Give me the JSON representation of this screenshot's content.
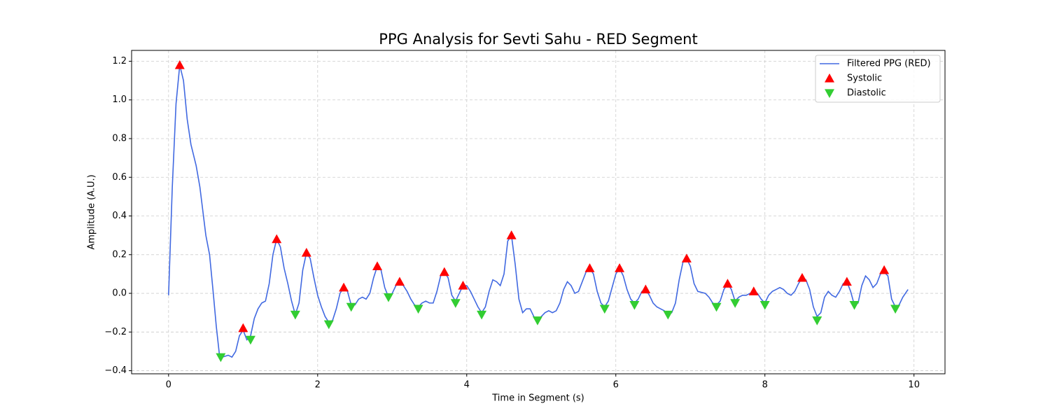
{
  "chart_data": {
    "type": "line",
    "title": "PPG Analysis for Sevti Sahu - RED Segment",
    "xlabel": "Time in Segment (s)",
    "ylabel": "Amplitude (A.U.)",
    "xlim": [
      -0.496,
      10.416
    ],
    "ylim": [
      -0.416,
      1.256
    ],
    "xticks": [
      0,
      2,
      4,
      6,
      8,
      10
    ],
    "yticks": [
      {
        "value": -0.4,
        "label": "−0.4"
      },
      {
        "value": -0.2,
        "label": "−0.2"
      },
      {
        "value": 0,
        "label": "0.0"
      },
      {
        "value": 0.2,
        "label": "0.2"
      },
      {
        "value": 0.4,
        "label": "0.4"
      },
      {
        "value": 0.6,
        "label": "0.6"
      },
      {
        "value": 0.8,
        "label": "0.8"
      },
      {
        "value": 1,
        "label": "1.0"
      },
      {
        "value": 1.2,
        "label": "1.2"
      }
    ],
    "grid": true,
    "legend": "upper right",
    "series": [
      {
        "name": "Filtered PPG (RED)",
        "color": "#4169e1",
        "marker": "line",
        "x": [
          0,
          0.05,
          0.1,
          0.15,
          0.2,
          0.25,
          0.3,
          0.37,
          0.42,
          0.5,
          0.55,
          0.6,
          0.64,
          0.68,
          0.72,
          0.8,
          0.85,
          0.9,
          0.95,
          1.0,
          1.05,
          1.1,
          1.15,
          1.2,
          1.25,
          1.3,
          1.35,
          1.4,
          1.45,
          1.5,
          1.55,
          1.6,
          1.65,
          1.7,
          1.75,
          1.8,
          1.85,
          1.9,
          1.95,
          2.0,
          2.05,
          2.1,
          2.15,
          2.2,
          2.25,
          2.3,
          2.35,
          2.4,
          2.45,
          2.5,
          2.55,
          2.6,
          2.65,
          2.7,
          2.75,
          2.8,
          2.85,
          2.9,
          2.95,
          3.0,
          3.05,
          3.1,
          3.15,
          3.2,
          3.25,
          3.3,
          3.35,
          3.4,
          3.45,
          3.5,
          3.55,
          3.6,
          3.65,
          3.7,
          3.75,
          3.8,
          3.85,
          3.9,
          3.95,
          4.0,
          4.05,
          4.1,
          4.15,
          4.2,
          4.25,
          4.3,
          4.35,
          4.4,
          4.45,
          4.5,
          4.55,
          4.6,
          4.65,
          4.7,
          4.75,
          4.8,
          4.85,
          4.9,
          4.95,
          5.0,
          5.05,
          5.1,
          5.15,
          5.2,
          5.25,
          5.3,
          5.35,
          5.4,
          5.45,
          5.5,
          5.55,
          5.6,
          5.65,
          5.7,
          5.75,
          5.8,
          5.85,
          5.9,
          5.95,
          6.0,
          6.05,
          6.1,
          6.15,
          6.2,
          6.25,
          6.3,
          6.35,
          6.4,
          6.45,
          6.5,
          6.55,
          6.6,
          6.65,
          6.7,
          6.75,
          6.8,
          6.85,
          6.9,
          6.95,
          7.0,
          7.05,
          7.1,
          7.2,
          7.25,
          7.3,
          7.35,
          7.4,
          7.45,
          7.5,
          7.55,
          7.6,
          7.65,
          7.7,
          7.75,
          7.8,
          7.85,
          7.9,
          7.95,
          8.0,
          8.05,
          8.1,
          8.15,
          8.2,
          8.25,
          8.3,
          8.35,
          8.4,
          8.45,
          8.5,
          8.55,
          8.6,
          8.65,
          8.7,
          8.75,
          8.8,
          8.85,
          8.9,
          8.95,
          9.0,
          9.05,
          9.1,
          9.15,
          9.2,
          9.25,
          9.3,
          9.35,
          9.4,
          9.45,
          9.5,
          9.55,
          9.6,
          9.65,
          9.7,
          9.75,
          9.8,
          9.85,
          9.92
        ],
        "values": [
          -0.01,
          0.55,
          0.98,
          1.18,
          1.1,
          0.9,
          0.77,
          0.66,
          0.55,
          0.3,
          0.2,
          0.0,
          -0.17,
          -0.31,
          -0.33,
          -0.32,
          -0.33,
          -0.3,
          -0.22,
          -0.19,
          -0.24,
          -0.22,
          -0.13,
          -0.08,
          -0.05,
          -0.04,
          0.05,
          0.2,
          0.28,
          0.24,
          0.13,
          0.05,
          -0.04,
          -0.11,
          -0.05,
          0.12,
          0.21,
          0.18,
          0.08,
          -0.01,
          -0.07,
          -0.12,
          -0.15,
          -0.14,
          -0.08,
          0.0,
          0.03,
          0.01,
          -0.06,
          -0.06,
          -0.03,
          -0.02,
          -0.03,
          0.0,
          0.08,
          0.14,
          0.12,
          0.03,
          -0.02,
          0.0,
          0.04,
          0.06,
          0.04,
          0.01,
          -0.03,
          -0.06,
          -0.07,
          -0.05,
          -0.04,
          -0.05,
          -0.05,
          0.01,
          0.09,
          0.11,
          0.08,
          -0.01,
          -0.04,
          0.0,
          0.04,
          0.04,
          0.01,
          -0.03,
          -0.07,
          -0.1,
          -0.07,
          0.01,
          0.07,
          0.06,
          0.04,
          0.1,
          0.27,
          0.3,
          0.15,
          -0.03,
          -0.1,
          -0.08,
          -0.08,
          -0.12,
          -0.14,
          -0.12,
          -0.1,
          -0.09,
          -0.1,
          -0.09,
          -0.05,
          0.02,
          0.06,
          0.04,
          0.0,
          0.01,
          0.06,
          0.11,
          0.13,
          0.1,
          0.01,
          -0.05,
          -0.07,
          -0.04,
          0.03,
          0.1,
          0.13,
          0.09,
          0.02,
          -0.03,
          -0.05,
          -0.03,
          0.01,
          0.02,
          -0.01,
          -0.05,
          -0.07,
          -0.08,
          -0.09,
          -0.11,
          -0.1,
          -0.05,
          0.07,
          0.16,
          0.18,
          0.14,
          0.05,
          0.01,
          0.0,
          -0.02,
          -0.05,
          -0.06,
          -0.04,
          0.02,
          0.05,
          0.02,
          -0.04,
          -0.02,
          -0.01,
          -0.01,
          0.0,
          0.01,
          0.0,
          -0.03,
          -0.05,
          -0.01,
          0.01,
          0.02,
          0.03,
          0.02,
          0.0,
          -0.01,
          0.01,
          0.05,
          0.08,
          0.07,
          0.02,
          -0.07,
          -0.12,
          -0.1,
          -0.02,
          0.01,
          -0.01,
          -0.02,
          0.01,
          0.05,
          0.06,
          0.01,
          -0.06,
          -0.05,
          0.04,
          0.09,
          0.07,
          0.03,
          0.05,
          0.1,
          0.11,
          0.09,
          -0.03,
          -0.07,
          -0.06,
          -0.02,
          0.02
        ]
      },
      {
        "name": "Systolic",
        "color": "#ff0000",
        "marker": "triangle-up",
        "x": [
          0.15,
          1.0,
          1.45,
          1.85,
          2.35,
          2.8,
          3.1,
          3.7,
          3.95,
          4.6,
          5.65,
          6.05,
          6.4,
          6.95,
          7.5,
          7.85,
          8.5,
          9.1,
          9.6
        ],
        "values": [
          1.18,
          -0.18,
          0.28,
          0.21,
          0.03,
          0.14,
          0.06,
          0.11,
          0.04,
          0.3,
          0.13,
          0.13,
          0.02,
          0.18,
          0.05,
          0.01,
          0.08,
          0.06,
          0.12
        ]
      },
      {
        "name": "Diastolic",
        "color": "#32cd32",
        "marker": "triangle-down",
        "x": [
          0.7,
          1.1,
          1.7,
          2.15,
          2.45,
          2.95,
          3.35,
          3.85,
          4.2,
          4.95,
          5.85,
          6.25,
          6.7,
          7.35,
          7.6,
          8.0,
          8.7,
          9.2,
          9.75
        ],
        "values": [
          -0.33,
          -0.24,
          -0.11,
          -0.16,
          -0.07,
          -0.02,
          -0.08,
          -0.05,
          -0.11,
          -0.14,
          -0.08,
          -0.06,
          -0.11,
          -0.07,
          -0.05,
          -0.06,
          -0.14,
          -0.06,
          -0.08
        ]
      }
    ]
  }
}
